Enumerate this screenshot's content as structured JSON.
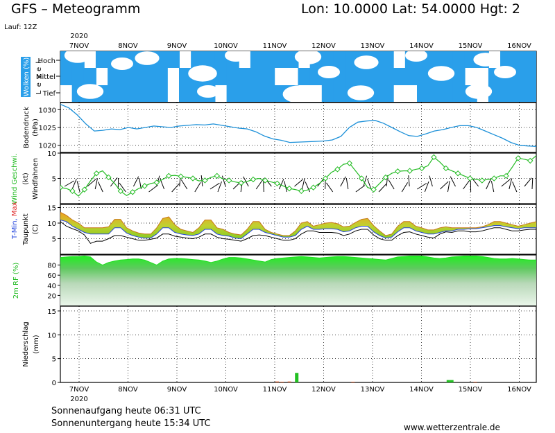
{
  "header": {
    "title": "GFS – Meteogramm",
    "coords": "Lon: 10.0000 Lat: 54.0000 Hgt: 2",
    "run": "Lauf: 12Z",
    "year": "2020"
  },
  "footer": {
    "sunrise": "Sonnenaufgang heute 06:31 UTC",
    "sunset": "Sonnenuntergang heute 15:34 UTC",
    "site": "www.wetterzentrale.de"
  },
  "colors": {
    "cloud": "#2a9fea",
    "pressure": "#1a8fd8",
    "wind": "#22bb22",
    "tmax_fill": "#f0a020",
    "tmin_line": "#2244dd",
    "tmax_label": "#dd2222",
    "humidity": "#22dd22",
    "precip": "#22c022"
  },
  "chart_data": [
    {
      "type": "heatmap",
      "panel": "clouds",
      "ylabel": "Wolken (%)",
      "level_label": "L e v e l",
      "levels": [
        "Hoch",
        "Mittel",
        "Tief"
      ],
      "x_days": [
        "7NOV",
        "8NOV",
        "9NOV",
        "10NOV",
        "11NOV",
        "12NOV",
        "13NOV",
        "14NOV",
        "15NOV",
        "16NOV"
      ],
      "high_cover": [
        1,
        1,
        0,
        1,
        1,
        1,
        1,
        1,
        1,
        1,
        0,
        1,
        1,
        1,
        1,
        0,
        1,
        1,
        1,
        1,
        0,
        1,
        1,
        1,
        1,
        1,
        1,
        1,
        0,
        1,
        1,
        1,
        1,
        1,
        1,
        1,
        0,
        1,
        1,
        1
      ],
      "mid_cover": [
        1,
        1,
        1,
        0,
        1,
        1,
        1,
        1,
        1,
        0,
        1,
        1,
        1,
        1,
        1,
        1,
        1,
        1,
        0,
        0,
        1,
        1,
        1,
        1,
        1,
        1,
        1,
        1,
        1,
        1,
        1,
        1,
        1,
        1,
        0,
        0,
        1,
        1,
        1,
        1
      ],
      "low_cover": [
        0,
        1,
        1,
        1,
        1,
        1,
        1,
        1,
        1,
        0,
        1,
        1,
        1,
        0,
        1,
        1,
        1,
        1,
        1,
        1,
        0,
        0,
        1,
        1,
        1,
        1,
        1,
        1,
        0,
        0,
        1,
        1,
        1,
        1,
        1,
        0,
        1,
        1,
        1,
        1
      ]
    },
    {
      "type": "line",
      "panel": "pressure",
      "ylabel": "Bodendruck",
      "unit": "(hPa)",
      "ylim": [
        1018,
        1032
      ],
      "yticks": [
        1020,
        1025,
        1030
      ],
      "values": [
        1031.5,
        1030.5,
        1028.5,
        1026,
        1024,
        1024.2,
        1024.6,
        1024.4,
        1025,
        1024.6,
        1025,
        1025.4,
        1025.2,
        1025,
        1025.4,
        1025.6,
        1025.8,
        1025.7,
        1026,
        1025.6,
        1025.2,
        1024.8,
        1024.6,
        1023.8,
        1022.6,
        1021.8,
        1021.4,
        1020.8,
        1020.9,
        1021,
        1021.1,
        1021.2,
        1021.5,
        1022.5,
        1025,
        1026.5,
        1026.8,
        1027,
        1026.2,
        1025,
        1023.8,
        1022.7,
        1022.5,
        1023.2,
        1024,
        1024.4,
        1025,
        1025.5,
        1025.5,
        1025,
        1024,
        1023,
        1022,
        1020.8,
        1020,
        1019.8,
        1019.7
      ]
    },
    {
      "type": "line",
      "panel": "wind",
      "ylabel": "Wind Geschwi.",
      "unit": "(kt)",
      "sublabel": "Windfahnen",
      "ylim": [
        0,
        10
      ],
      "yticks": [
        5,
        10
      ],
      "speeds": [
        3.2,
        3.0,
        2.5,
        1.5,
        2.8,
        4.5,
        6.0,
        6.5,
        5.2,
        4.0,
        2.5,
        1.6,
        2.3,
        3.0,
        3.5,
        4.0,
        4.2,
        4.8,
        5.5,
        5.6,
        5.4,
        5.2,
        5.0,
        4.5,
        4.6,
        5.2,
        5.5,
        4.9,
        4.6,
        4.3,
        4.1,
        4.4,
        4.8,
        5.0,
        4.6,
        4.3,
        4.0,
        3.5,
        3.0,
        2.8,
        2.5,
        2.7,
        3.2,
        4.0,
        5.0,
        6.2,
        6.8,
        7.8,
        8.0,
        6.5,
        5.0,
        3.2,
        2.8,
        4.0,
        5.2,
        6.0,
        6.4,
        6.5,
        6.5,
        6.8,
        7.0,
        7.5,
        9.2,
        8.2,
        7.0,
        6.5,
        6.0,
        5.5,
        5.0,
        4.8,
        4.6,
        4.8,
        5.0,
        5.5,
        5.5,
        7.2,
        9.0,
        8.8,
        8.5,
        9.5
      ]
    },
    {
      "type": "area",
      "panel": "temperature",
      "ylabel_parts": [
        "T-Min,",
        "Max"
      ],
      "sublabel": "Taupunkt",
      "unit": "(C)",
      "ylim": [
        0,
        16
      ],
      "yticks": [
        5,
        10,
        15
      ],
      "tmax": [
        13.5,
        12.5,
        11,
        10,
        8.5,
        8.5,
        8.5,
        8.5,
        8.8,
        11.2,
        11.2,
        8.5,
        7.5,
        6.8,
        6.5,
        6.5,
        8.5,
        11.5,
        12,
        9.5,
        8,
        7.5,
        7,
        8.5,
        11,
        11,
        8.5,
        8,
        7,
        6.5,
        6.2,
        8,
        10.5,
        10.5,
        8,
        7,
        6.5,
        6,
        6,
        7.5,
        10,
        10.5,
        9,
        9.5,
        10,
        10.2,
        9.8,
        8.8,
        9,
        10.2,
        11.2,
        11.5,
        9.2,
        7.5,
        6,
        6.5,
        9,
        10.5,
        10.5,
        9,
        8.5,
        7.8,
        7.8,
        8.5,
        8.8,
        8.5,
        8.5,
        8.5,
        8.5,
        8.5,
        8.8,
        9.5,
        10.5,
        10.5,
        10,
        9.5,
        9,
        9.5,
        10,
        10.5
      ],
      "tmin": [
        11,
        10.5,
        9,
        8,
        7,
        6.5,
        6.5,
        6.5,
        6.5,
        8.5,
        8.5,
        6.8,
        6,
        5.5,
        5.2,
        5.2,
        6.5,
        8.5,
        8.5,
        7,
        6.5,
        6.2,
        6,
        6.5,
        8,
        8,
        6.5,
        6,
        5.8,
        5.2,
        5,
        6.5,
        8,
        8,
        7,
        6.5,
        6,
        5.5,
        5.5,
        6,
        8,
        9,
        8,
        8,
        8.2,
        8.2,
        8,
        7.2,
        7.5,
        8.5,
        9,
        9,
        7.2,
        6,
        5.2,
        5.5,
        7.2,
        8.5,
        8.5,
        7.5,
        7,
        6.5,
        6.5,
        7,
        7.5,
        7.5,
        8,
        8,
        8.2,
        8.2,
        8.5,
        8.8,
        9.2,
        9.2,
        8.8,
        8.5,
        8.2,
        8.5,
        8.5,
        8.5
      ],
      "dewpoint": [
        10.5,
        9,
        8.2,
        7.5,
        6.2,
        3.5,
        4.2,
        4.2,
        5,
        6,
        6,
        5.5,
        5,
        4.5,
        4.5,
        4.8,
        5.2,
        6.5,
        6.5,
        5.8,
        5.5,
        5.2,
        5,
        5.5,
        6.5,
        6.5,
        5.5,
        5,
        4.8,
        4.5,
        4.2,
        5,
        6,
        6.2,
        6,
        5.5,
        5,
        4.5,
        4.5,
        5,
        6.5,
        7.5,
        7.5,
        7,
        7,
        7,
        6.8,
        6,
        6.5,
        7.5,
        8,
        8,
        6.2,
        5,
        4.5,
        4.5,
        6,
        7,
        7.2,
        6.5,
        6,
        5.5,
        5.2,
        6.5,
        7.2,
        7,
        7.5,
        7.5,
        7.2,
        7.2,
        7.5,
        8,
        8.5,
        8.5,
        8,
        7.5,
        7.5,
        7.8,
        8,
        8
      ]
    },
    {
      "type": "area",
      "panel": "humidity",
      "ylabel": "2m RF (%)",
      "ylim": [
        0,
        100
      ],
      "yticks": [
        20,
        40,
        60,
        80
      ],
      "values": [
        95,
        96,
        97,
        97,
        98,
        96,
        86,
        80,
        85,
        88,
        90,
        91,
        92,
        92,
        90,
        85,
        80,
        88,
        92,
        93,
        93,
        92,
        91,
        90,
        88,
        85,
        88,
        92,
        95,
        95,
        94,
        92,
        90,
        88,
        86,
        91,
        93,
        94,
        95,
        96,
        97,
        96,
        95,
        94,
        95,
        96,
        97,
        97,
        96,
        95,
        94,
        93,
        92,
        91,
        90,
        93,
        96,
        97,
        98,
        98,
        98,
        96,
        94,
        93,
        94,
        96,
        97,
        98,
        98,
        98,
        97,
        95,
        93,
        92,
        92,
        93,
        92,
        91,
        90,
        90
      ]
    },
    {
      "type": "bar",
      "panel": "precipitation",
      "ylabel": "Niederschlag",
      "unit": "(mm)",
      "ylim": [
        0,
        16
      ],
      "yticks": [
        0,
        5,
        10,
        15
      ],
      "day_positions": [
        0,
        1,
        2,
        3,
        4,
        5,
        6,
        7,
        8,
        9
      ],
      "bars": [
        {
          "day": 4.05,
          "value": 0.2
        },
        {
          "day": 4.15,
          "value": 0.15
        },
        {
          "day": 4.3,
          "value": 0.2
        },
        {
          "day": 4.45,
          "value": 2.0
        },
        {
          "day": 5.6,
          "value": 0.15
        },
        {
          "day": 7.55,
          "value": 0.5
        },
        {
          "day": 7.62,
          "value": 0.5
        },
        {
          "day": 8.1,
          "value": 0.15
        }
      ]
    }
  ]
}
